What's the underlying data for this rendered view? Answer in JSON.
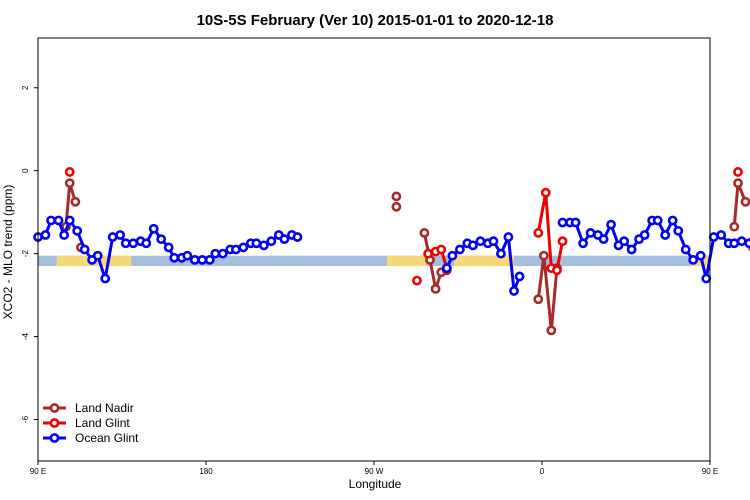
{
  "chart_data": {
    "type": "line",
    "title": "10S-5S February (Ver 10)   2015-01-01 to 2020-12-18",
    "xlabel": "Longitude",
    "ylabel": "XCO2 - MLO trend (ppm)",
    "xlim": [
      90,
      450
    ],
    "ylim": [
      -7.0,
      3.2
    ],
    "x_ticks": [
      {
        "value": 90,
        "label": "90 E"
      },
      {
        "value": 180,
        "label": "180"
      },
      {
        "value": 270,
        "label": "90 W"
      },
      {
        "value": 360,
        "label": "0"
      },
      {
        "value": 450,
        "label": "90 E"
      },
      {
        "value": 540,
        "label": "180"
      }
    ],
    "y_ticks": [
      {
        "value": 2,
        "label": "2"
      },
      {
        "value": 0,
        "label": "0"
      },
      {
        "value": -2,
        "label": "-2"
      },
      {
        "value": -4,
        "label": "-4"
      },
      {
        "value": -6,
        "label": "-6"
      }
    ],
    "map_strip": {
      "y_range": [
        -2.3,
        -2.05
      ],
      "ocean_color": "#a7bfdf",
      "land_color": "#f5d87a",
      "land_segments": [
        [
          100,
          140
        ],
        [
          277,
          298
        ],
        [
          313,
          345
        ],
        [
          440,
          470
        ],
        [
          490,
          500
        ],
        [
          520,
          530
        ]
      ]
    },
    "legend": {
      "position": "bottom-left"
    },
    "series": [
      {
        "name": "Land Nadir",
        "color": "#a52a2a",
        "segments": [
          [
            [
              105,
              -1.35
            ],
            [
              107,
              -0.3
            ],
            [
              110,
              -0.75
            ]
          ],
          [
            [
              113,
              -1.85
            ]
          ],
          [
            [
              282,
              -0.62
            ]
          ],
          [
            [
              282,
              -0.87
            ]
          ],
          [
            [
              297,
              -1.5
            ],
            [
              300,
              -2.15
            ],
            [
              303,
              -2.85
            ],
            [
              306,
              -2.45
            ],
            [
              309,
              -2.4
            ]
          ],
          [
            [
              358,
              -3.1
            ],
            [
              361,
              -2.05
            ],
            [
              365,
              -3.85
            ],
            [
              368,
              -2.35
            ]
          ],
          [
            [
              463,
              -1.35
            ],
            [
              465,
              -0.3
            ],
            [
              469,
              -0.75
            ]
          ],
          [
            [
              473,
              -1.85
            ]
          ]
        ]
      },
      {
        "name": "Land Glint",
        "color": "#ee0000",
        "segments": [
          [
            [
              107,
              -0.03
            ]
          ],
          [
            [
              293,
              -2.65
            ]
          ],
          [
            [
              299,
              -2.0
            ],
            [
              303,
              -1.95
            ],
            [
              306,
              -1.9
            ],
            [
              309,
              -2.35
            ]
          ],
          [
            [
              358,
              -1.5
            ],
            [
              362,
              -0.53
            ],
            [
              365,
              -2.35
            ],
            [
              368,
              -2.4
            ],
            [
              371,
              -1.7
            ]
          ],
          [
            [
              465,
              -0.03
            ]
          ]
        ]
      },
      {
        "name": "Ocean Glint",
        "color": "#0000ee",
        "segments": [
          [
            [
              90,
              -1.6
            ],
            [
              94,
              -1.55
            ],
            [
              97,
              -1.2
            ],
            [
              101,
              -1.2
            ],
            [
              104,
              -1.55
            ],
            [
              107,
              -1.2
            ],
            [
              111,
              -1.45
            ],
            [
              115,
              -1.9
            ],
            [
              119,
              -2.15
            ],
            [
              122,
              -2.05
            ],
            [
              126,
              -2.6
            ],
            [
              130,
              -1.6
            ],
            [
              134,
              -1.55
            ],
            [
              137,
              -1.75
            ],
            [
              141,
              -1.75
            ],
            [
              145,
              -1.7
            ],
            [
              148,
              -1.75
            ],
            [
              152,
              -1.4
            ],
            [
              156,
              -1.65
            ],
            [
              160,
              -1.85
            ],
            [
              163,
              -2.1
            ],
            [
              167,
              -2.1
            ],
            [
              170,
              -2.05
            ],
            [
              174,
              -2.15
            ],
            [
              178,
              -2.15
            ],
            [
              182,
              -2.15
            ],
            [
              185,
              -2.0
            ],
            [
              189,
              -2.0
            ],
            [
              193,
              -1.9
            ],
            [
              196,
              -1.9
            ],
            [
              200,
              -1.85
            ],
            [
              204,
              -1.75
            ],
            [
              207,
              -1.75
            ],
            [
              211,
              -1.8
            ],
            [
              215,
              -1.7
            ],
            [
              219,
              -1.55
            ],
            [
              222,
              -1.65
            ],
            [
              226,
              -1.55
            ],
            [
              229,
              -1.6
            ]
          ],
          [
            [
              309,
              -2.35
            ],
            [
              312,
              -2.05
            ],
            [
              316,
              -1.9
            ],
            [
              320,
              -1.75
            ],
            [
              323,
              -1.8
            ],
            [
              327,
              -1.7
            ],
            [
              331,
              -1.75
            ],
            [
              334,
              -1.7
            ],
            [
              338,
              -2.0
            ],
            [
              342,
              -1.6
            ],
            [
              345,
              -2.9
            ],
            [
              348,
              -2.55
            ]
          ],
          [
            [
              371,
              -1.25
            ],
            [
              375,
              -1.25
            ],
            [
              378,
              -1.25
            ],
            [
              382,
              -1.75
            ],
            [
              386,
              -1.5
            ],
            [
              390,
              -1.55
            ],
            [
              393,
              -1.65
            ],
            [
              397,
              -1.3
            ],
            [
              401,
              -1.8
            ],
            [
              404,
              -1.7
            ],
            [
              408,
              -1.9
            ],
            [
              412,
              -1.65
            ],
            [
              415,
              -1.55
            ],
            [
              419,
              -1.2
            ],
            [
              422,
              -1.2
            ],
            [
              426,
              -1.55
            ],
            [
              430,
              -1.2
            ],
            [
              433,
              -1.45
            ],
            [
              437,
              -1.9
            ],
            [
              441,
              -2.15
            ],
            [
              445,
              -2.05
            ],
            [
              448,
              -2.6
            ],
            [
              452,
              -1.6
            ],
            [
              456,
              -1.55
            ],
            [
              460,
              -1.75
            ],
            [
              463,
              -1.75
            ],
            [
              467,
              -1.7
            ],
            [
              471,
              -1.75
            ],
            [
              474,
              -1.4
            ]
          ]
        ]
      }
    ]
  }
}
